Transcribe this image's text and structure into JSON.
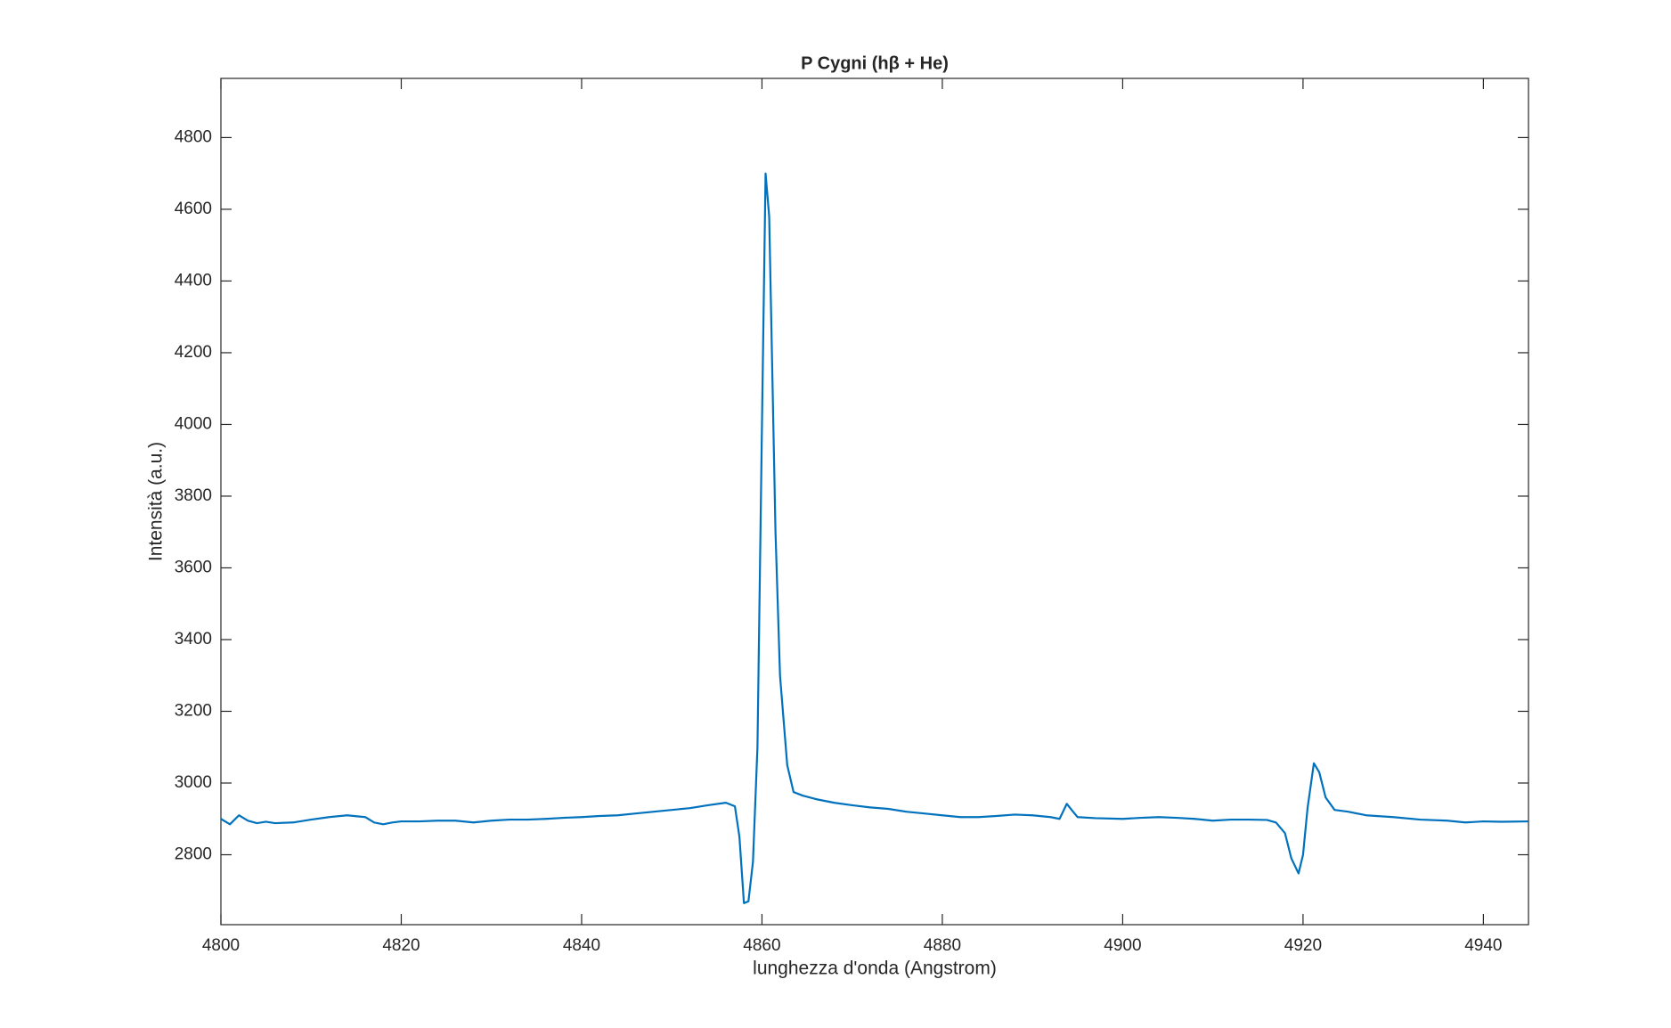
{
  "chart_data": {
    "type": "line",
    "title": "P Cygni (hβ + He)",
    "x_label": "lunghezza d'onda (Angstrom)",
    "y_label": "Intensità (a.u.)",
    "series": [
      {
        "color": "#0072bd",
        "x": [
          4800,
          4801,
          4802,
          4803,
          4804,
          4805,
          4806,
          4808,
          4810,
          4812,
          4814,
          4816,
          4817,
          4818,
          4819,
          4820,
          4822,
          4824,
          4826,
          4828,
          4830,
          4832,
          4834,
          4836,
          4838,
          4840,
          4842,
          4844,
          4846,
          4848,
          4850,
          4852,
          4854,
          4856,
          4857,
          4857.5,
          4858,
          4858.5,
          4859,
          4859.5,
          4860,
          4860.4,
          4860.8,
          4861.5,
          4862,
          4862.8,
          4863.5,
          4864.5,
          4866,
          4868,
          4870,
          4872,
          4874,
          4876,
          4878,
          4880,
          4882,
          4884,
          4886,
          4888,
          4890,
          4892,
          4893,
          4893.8,
          4894.5,
          4895,
          4897,
          4900,
          4902,
          4904,
          4906,
          4908,
          4910,
          4912,
          4914,
          4916,
          4917,
          4918,
          4918.7,
          4919.5,
          4920,
          4920.5,
          4921.2,
          4921.8,
          4922.5,
          4923.5,
          4925,
          4927,
          4930,
          4933,
          4936,
          4938,
          4940,
          4942,
          4945
        ],
        "values": [
          2900,
          2885,
          2910,
          2895,
          2888,
          2892,
          2888,
          2890,
          2898,
          2905,
          2910,
          2905,
          2890,
          2885,
          2890,
          2893,
          2893,
          2895,
          2895,
          2890,
          2895,
          2898,
          2898,
          2900,
          2903,
          2905,
          2908,
          2910,
          2915,
          2920,
          2925,
          2930,
          2938,
          2945,
          2935,
          2850,
          2665,
          2670,
          2780,
          3100,
          4000,
          4700,
          4580,
          3700,
          3300,
          3050,
          2975,
          2965,
          2955,
          2945,
          2938,
          2932,
          2928,
          2920,
          2915,
          2910,
          2905,
          2905,
          2908,
          2912,
          2910,
          2905,
          2900,
          2942,
          2920,
          2905,
          2902,
          2900,
          2903,
          2905,
          2903,
          2900,
          2895,
          2898,
          2898,
          2897,
          2890,
          2860,
          2790,
          2748,
          2800,
          2930,
          3055,
          3030,
          2960,
          2925,
          2920,
          2910,
          2905,
          2898,
          2895,
          2890,
          2893,
          2892,
          2893
        ]
      }
    ],
    "xlim": [
      4800,
      4945
    ],
    "xticks": [
      4800,
      4820,
      4840,
      4860,
      4880,
      4900,
      4920,
      4940
    ],
    "ylim": [
      2605,
      4965
    ],
    "yticks": [
      2800,
      3000,
      3200,
      3400,
      3600,
      3800,
      4000,
      4200,
      4400,
      4600,
      4800
    ],
    "grid": false
  }
}
